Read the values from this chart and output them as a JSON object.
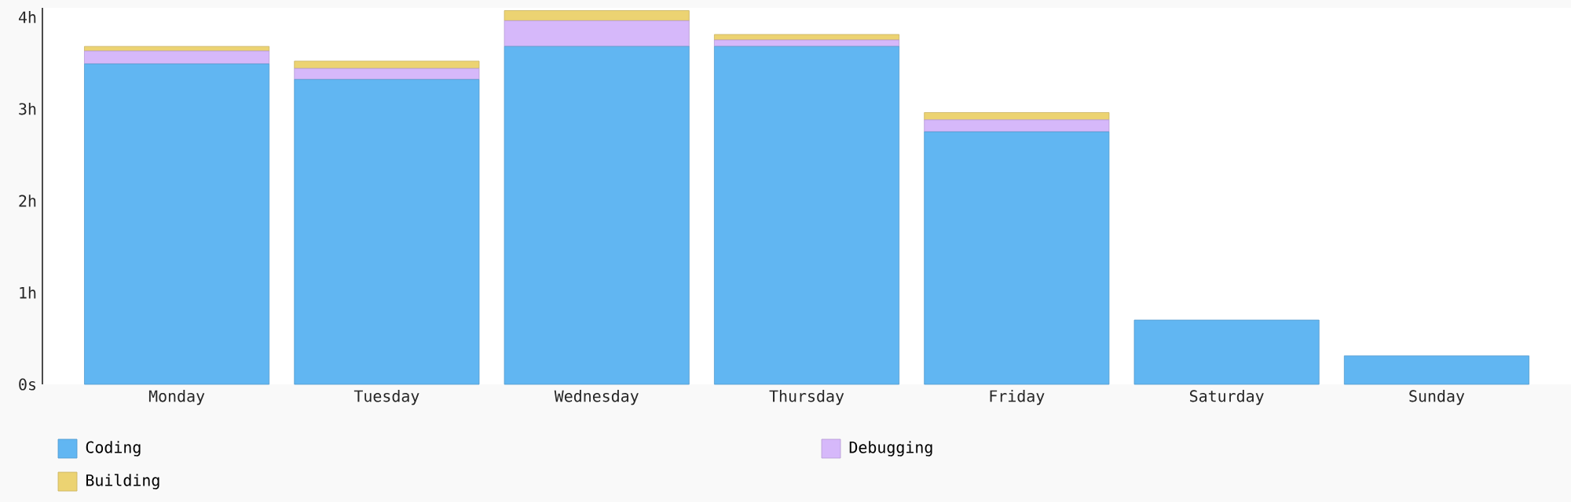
{
  "chart_data": {
    "type": "bar",
    "stacked": true,
    "categories": [
      "Monday",
      "Tuesday",
      "Wednesday",
      "Thursday",
      "Friday",
      "Saturday",
      "Sunday"
    ],
    "series": [
      {
        "name": "Coding",
        "color": "#61b6f2",
        "values": [
          3.49,
          3.32,
          3.68,
          3.68,
          2.75,
          0.7,
          0.31
        ]
      },
      {
        "name": "Debugging",
        "color": "#d6b8fa",
        "values": [
          0.14,
          0.12,
          0.28,
          0.07,
          0.13,
          0,
          0
        ]
      },
      {
        "name": "Building",
        "color": "#ecd372",
        "values": [
          0.05,
          0.08,
          0.11,
          0.06,
          0.08,
          0,
          0
        ]
      }
    ],
    "ylim": [
      0,
      4.1
    ],
    "yticks": [
      {
        "value": 0,
        "label": "0s"
      },
      {
        "value": 1,
        "label": "1h"
      },
      {
        "value": 2,
        "label": "2h"
      },
      {
        "value": 3,
        "label": "3h"
      },
      {
        "value": 4,
        "label": "4h"
      }
    ],
    "legend": "bottom"
  }
}
